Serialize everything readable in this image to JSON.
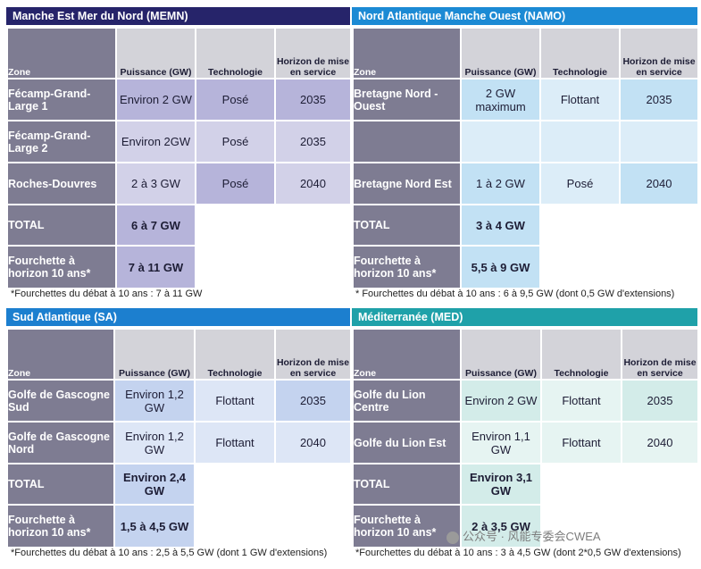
{
  "headers": {
    "zone": "Zone",
    "puissance": "Puissance (GW)",
    "technologie": "Technologie",
    "horizon": "Horizon de mise en service"
  },
  "memn": {
    "title": "Manche Est Mer du Nord (MEMN)",
    "rows": [
      {
        "zone": "Fécamp-Grand-Large 1",
        "power": "Environ 2 GW",
        "tech": "Posé",
        "horizon": "2035"
      },
      {
        "zone": "Fécamp-Grand-Large 2",
        "power": "Environ 2GW",
        "tech": "Posé",
        "horizon": "2035"
      },
      {
        "zone": "Roches-Douvres",
        "power": "2 à 3 GW",
        "tech": "Posé",
        "horizon": "2040"
      }
    ],
    "total_label": "TOTAL",
    "total_value": "6 à 7 GW",
    "range_label": "Fourchette à horizon 10 ans*",
    "range_value": "7 à 11 GW",
    "note": "*Fourchettes du débat à 10 ans : 7 à 11 GW"
  },
  "namo": {
    "title": "Nord Atlantique Manche Ouest (NAMO)",
    "rows": [
      {
        "zone": "Bretagne Nord - Ouest",
        "power": "2 GW maximum",
        "tech": "Flottant",
        "horizon": "2035"
      },
      {
        "zone": "",
        "power": "",
        "tech": "",
        "horizon": ""
      },
      {
        "zone": "Bretagne Nord Est",
        "power": "1 à 2 GW",
        "tech": "Posé",
        "horizon": "2040"
      }
    ],
    "total_label": "TOTAL",
    "total_value": "3 à 4 GW",
    "range_label": "Fourchette à horizon 10 ans*",
    "range_value": "5,5 à 9 GW",
    "note": "* Fourchettes du débat à 10 ans : 6 à 9,5 GW (dont 0,5 GW d'extensions)"
  },
  "sa": {
    "title": "Sud Atlantique (SA)",
    "rows": [
      {
        "zone": "Golfe de Gascogne Sud",
        "power": "Environ 1,2 GW",
        "tech": "Flottant",
        "horizon": "2035"
      },
      {
        "zone": "Golfe de Gascogne Nord",
        "power": "Environ 1,2 GW",
        "tech": "Flottant",
        "horizon": "2040"
      }
    ],
    "total_label": "TOTAL",
    "total_value": "Environ 2,4 GW",
    "range_label": "Fourchette à horizon 10 ans*",
    "range_value": "1,5 à 4,5 GW",
    "note": "*Fourchettes du débat à 10 ans : 2,5 à 5,5 GW (dont 1 GW d'extensions)"
  },
  "med": {
    "title": "Méditerranée (MED)",
    "rows": [
      {
        "zone": "Golfe du Lion Centre",
        "power": "Environ 2 GW",
        "tech": "Flottant",
        "horizon": "2035"
      },
      {
        "zone": "Golfe du Lion Est",
        "power": "Environ 1,1 GW",
        "tech": "Flottant",
        "horizon": "2040"
      }
    ],
    "total_label": "TOTAL",
    "total_value": "Environ 3,1 GW",
    "range_label": "Fourchette à horizon 10 ans*",
    "range_value": "2 à 3,5 GW",
    "note": "*Fourchettes du débat à 10 ans : 3 à 4,5 GW (dont 2*0,5 GW d'extensions)"
  },
  "watermark": "公众号 · 风能专委会CWEA",
  "colors": {
    "memn_title": "#26246a",
    "memn_fill": "#b6b4da",
    "namo_title": "#1c8ad4",
    "namo_fill": "#c2e1f4",
    "sa_title": "#1c7fcf",
    "sa_fill": "#c4d3ef",
    "med_title": "#1fa1a9",
    "med_fill": "#d3ece9"
  }
}
